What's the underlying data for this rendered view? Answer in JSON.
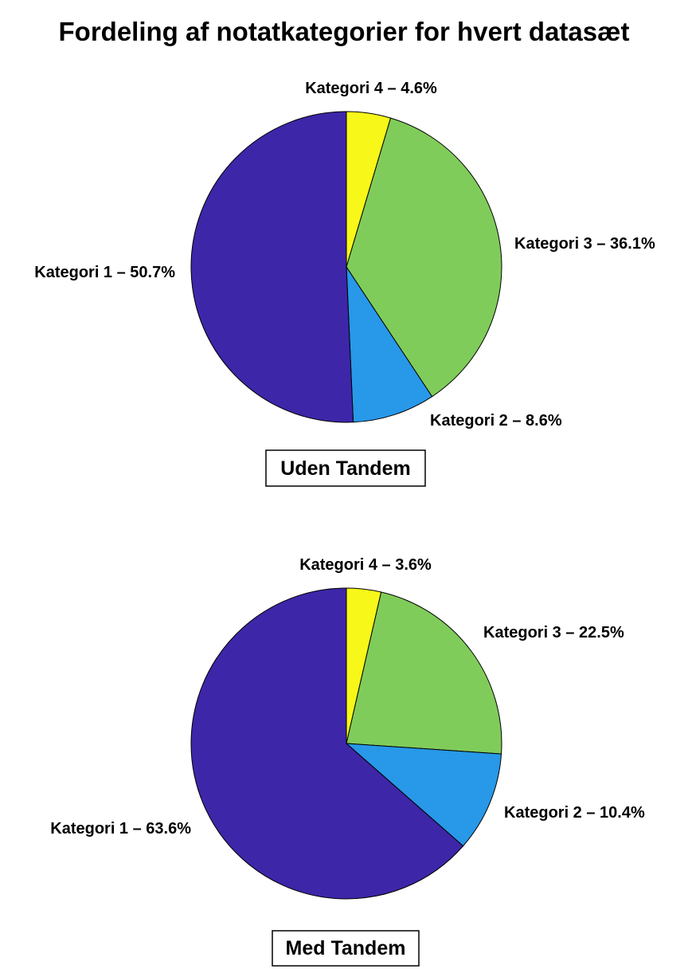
{
  "title": "Fordeling af notatkategorier for hvert datasæt",
  "colors": {
    "Kategori 1": "#3e26a8",
    "Kategori 2": "#2898e8",
    "Kategori 3": "#80cc5a",
    "Kategori 4": "#f7f719"
  },
  "chart_data": [
    {
      "type": "pie",
      "caption": "Uden Tandem",
      "slices": [
        {
          "name": "Kategori 4",
          "value": 4.6,
          "label": "Kategori 4 – 4.6%"
        },
        {
          "name": "Kategori 3",
          "value": 36.1,
          "label": "Kategori 3 – 36.1%"
        },
        {
          "name": "Kategori 2",
          "value": 8.6,
          "label": "Kategori 2 – 8.6%"
        },
        {
          "name": "Kategori 1",
          "value": 50.7,
          "label": "Kategori 1 – 50.7%"
        }
      ]
    },
    {
      "type": "pie",
      "caption": "Med Tandem",
      "slices": [
        {
          "name": "Kategori 4",
          "value": 3.6,
          "label": "Kategori 4 – 3.6%"
        },
        {
          "name": "Kategori 3",
          "value": 22.5,
          "label": "Kategori 3 – 22.5%"
        },
        {
          "name": "Kategori 2",
          "value": 10.4,
          "label": "Kategori 2 – 10.4%"
        },
        {
          "name": "Kategori 1",
          "value": 63.6,
          "label": "Kategori 1 – 63.6%"
        }
      ]
    }
  ]
}
